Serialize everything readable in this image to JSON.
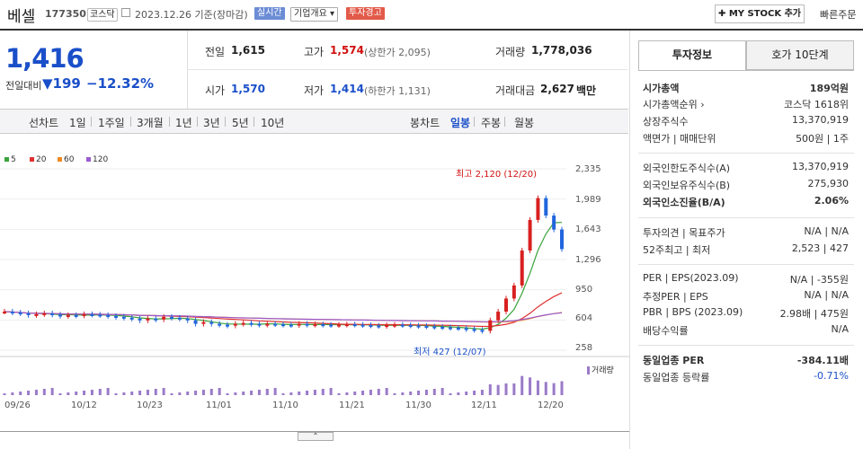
{
  "header": {
    "name": "베셀",
    "code": "177350",
    "market": "코스닥",
    "date": "2023.12.26 기준(장마감)",
    "tags": [
      "실시간",
      "기업개요 ▾",
      "투자경고"
    ],
    "mystock": "✚ MY STOCK 추가",
    "quick": "빠른주문"
  },
  "quote": {
    "price": "1,416",
    "change_label": "전일대비",
    "change": "▼199",
    "change_pct": "−12.32%",
    "prev_label": "전일",
    "prev": "1,615",
    "open_label": "시가",
    "open": "1,570",
    "high_label": "고가",
    "high": "1,574",
    "high_sub": "(상한가 2,095)",
    "low_label": "저가",
    "low": "1,414",
    "low_sub": "(하한가 1,131)",
    "vol_label": "거래량",
    "vol": "1,778,036",
    "amt_label": "거래대금",
    "amt": "2,627",
    "amt_unit": "백만"
  },
  "chart_tabs": {
    "line_label": "선차트",
    "periods": [
      "1일",
      "1주일",
      "3개월",
      "1년",
      "3년",
      "5년",
      "10년"
    ],
    "candle_label": "봉차트",
    "candles": [
      "일봉",
      "주봉",
      "월봉"
    ]
  },
  "chart_data": {
    "type": "candlestick",
    "legend": [
      "5",
      "20",
      "60",
      "120"
    ],
    "legend_colors": [
      "#3aa33a",
      "#e03030",
      "#f08a20",
      "#9a5ad0"
    ],
    "yticks": [
      "2,335",
      "1,989",
      "1,643",
      "1,296",
      "950",
      "604",
      "258"
    ],
    "xticks": [
      "09/26",
      "10/12",
      "10/23",
      "11/01",
      "11/10",
      "11/21",
      "11/30",
      "12/11",
      "12/20"
    ],
    "high_annot": "최고 2,120 (12/20)",
    "low_annot": "최저 427 (12/07)",
    "volume_label": "거래량",
    "closes": [
      700,
      690,
      680,
      660,
      670,
      680,
      665,
      650,
      660,
      655,
      670,
      665,
      660,
      650,
      640,
      630,
      620,
      600,
      620,
      610,
      640,
      630,
      620,
      600,
      560,
      580,
      560,
      550,
      540,
      560,
      570,
      560,
      550,
      560,
      555,
      550,
      545,
      560,
      550,
      555,
      550,
      545,
      550,
      555,
      550,
      545,
      540,
      535,
      545,
      550,
      545,
      540,
      535,
      530,
      525,
      520,
      515,
      510,
      500,
      490,
      480,
      600,
      700,
      850,
      1000,
      1400,
      1750,
      2000,
      1800,
      1640,
      1416
    ]
  },
  "tabs": [
    "투자정보",
    "호가 10단계"
  ],
  "info": [
    {
      "k": "시가총액",
      "v": "189억원",
      "bold": true
    },
    {
      "k": "시가총액순위 ›",
      "v": "코스닥 1618위"
    },
    {
      "k": "상장주식수",
      "v": "13,370,919"
    },
    {
      "k": "액면가 | 매매단위",
      "v": "500원 | 1주"
    },
    {
      "k": "외국인한도주식수(A)",
      "v": "13,370,919"
    },
    {
      "k": "외국인보유주식수(B)",
      "v": "275,930"
    },
    {
      "k": "외국인소진율(B/A)",
      "v": "2.06%",
      "bold": true
    },
    {
      "k": "투자의견 | 목표주가",
      "v": "N/A | N/A"
    },
    {
      "k": "52주최고 | 최저",
      "v": "2,523 | 427"
    },
    {
      "k": "PER | EPS(2023.09)",
      "v": "N/A | -355원"
    },
    {
      "k": "추정PER | EPS",
      "v": "N/A | N/A"
    },
    {
      "k": "PBR | BPS (2023.09)",
      "v": "2.98배 | 475원"
    },
    {
      "k": "배당수익률",
      "v": "N/A"
    },
    {
      "k": "동일업종 PER",
      "v": "-384.11배",
      "bold": true
    },
    {
      "k": "동일업종 등락률",
      "v": "-0.71%",
      "blue": true
    }
  ]
}
